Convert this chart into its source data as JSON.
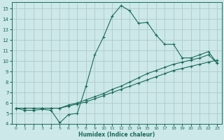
{
  "xlabel": "Humidex (Indice chaleur)",
  "bg_color": "#cce8e8",
  "grid_color": "#b0c8c8",
  "line_color": "#1a6b5a",
  "xlim": [
    -0.5,
    23.5
  ],
  "ylim": [
    4.0,
    15.6
  ],
  "xticks": [
    0,
    1,
    2,
    3,
    4,
    5,
    6,
    7,
    8,
    9,
    10,
    11,
    12,
    13,
    14,
    15,
    16,
    17,
    18,
    19,
    20,
    21,
    22,
    23
  ],
  "yticks": [
    4,
    5,
    6,
    7,
    8,
    9,
    10,
    11,
    12,
    13,
    14,
    15
  ],
  "line1_x": [
    0,
    1,
    2,
    3,
    4,
    5,
    6,
    7,
    8,
    9,
    10,
    11,
    12,
    13,
    14,
    15,
    16,
    17,
    18,
    19,
    20,
    21,
    22,
    23
  ],
  "line1_y": [
    5.5,
    5.3,
    5.3,
    5.4,
    5.3,
    4.1,
    4.9,
    5.0,
    7.6,
    10.6,
    12.3,
    14.3,
    15.3,
    14.8,
    13.6,
    13.7,
    12.5,
    11.6,
    11.6,
    10.3,
    10.3,
    10.6,
    10.9,
    9.8
  ],
  "line2_x": [
    0,
    1,
    2,
    3,
    4,
    5,
    6,
    7,
    8,
    9,
    10,
    11,
    12,
    13,
    14,
    15,
    16,
    17,
    18,
    19,
    20,
    21,
    22,
    23
  ],
  "line2_y": [
    5.5,
    5.5,
    5.5,
    5.5,
    5.5,
    5.5,
    5.8,
    6.0,
    6.3,
    6.6,
    6.9,
    7.3,
    7.6,
    8.0,
    8.4,
    8.8,
    9.1,
    9.4,
    9.7,
    9.9,
    10.1,
    10.3,
    10.6,
    9.8
  ],
  "line3_x": [
    0,
    1,
    2,
    3,
    4,
    5,
    6,
    7,
    8,
    9,
    10,
    11,
    12,
    13,
    14,
    15,
    16,
    17,
    18,
    19,
    20,
    21,
    22,
    23
  ],
  "line3_y": [
    5.5,
    5.5,
    5.5,
    5.5,
    5.5,
    5.5,
    5.7,
    5.9,
    6.1,
    6.4,
    6.7,
    7.0,
    7.3,
    7.6,
    7.9,
    8.2,
    8.5,
    8.8,
    9.1,
    9.3,
    9.5,
    9.7,
    9.9,
    10.1
  ]
}
